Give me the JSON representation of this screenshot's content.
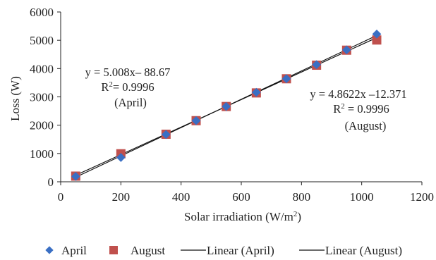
{
  "chart_data": {
    "type": "scatter",
    "xlabel_main": "Solar irradiation (W/m",
    "xlabel_sup": "2",
    "xlabel_end": ")",
    "ylabel": "Loss (W)",
    "xlim": [
      0,
      1200
    ],
    "ylim": [
      0,
      6000
    ],
    "xticks": [
      0,
      200,
      400,
      600,
      800,
      1000,
      1200
    ],
    "yticks": [
      0,
      1000,
      2000,
      3000,
      4000,
      5000,
      6000
    ],
    "grid": false,
    "legend_position": "bottom",
    "series": [
      {
        "name": "April",
        "marker": "diamond",
        "color": "#3a6fc4",
        "x": [
          50,
          200,
          350,
          450,
          550,
          650,
          750,
          850,
          950,
          1050
        ],
        "y": [
          190,
          860,
          1670,
          2160,
          2660,
          3160,
          3640,
          4140,
          4660,
          5220
        ]
      },
      {
        "name": "August",
        "marker": "square",
        "color": "#c0504d",
        "x": [
          50,
          200,
          350,
          450,
          550,
          650,
          750,
          850,
          950,
          1050
        ],
        "y": [
          200,
          990,
          1680,
          2160,
          2660,
          3140,
          3640,
          4120,
          4650,
          5010
        ]
      }
    ],
    "trendlines": [
      {
        "name": "Linear (April)",
        "slope": 5.008,
        "intercept": -88.67,
        "x_range": [
          50,
          1050
        ],
        "color": "#111111"
      },
      {
        "name": "Linear (August)",
        "slope": 4.8622,
        "intercept": -12.371,
        "x_range": [
          50,
          1050
        ],
        "color": "#111111"
      }
    ],
    "annotations": [
      {
        "lines": [
          "y = 5.008x– 88.67",
          "R",
          "2",
          "= 0.9996",
          "(April)"
        ]
      },
      {
        "lines": [
          "y = 4.8622x –12.371",
          "R",
          "2",
          " = 0.9996",
          "(August)"
        ]
      }
    ]
  },
  "legend": {
    "items": [
      "April",
      "August",
      "Linear (April)",
      "Linear (August)"
    ]
  }
}
